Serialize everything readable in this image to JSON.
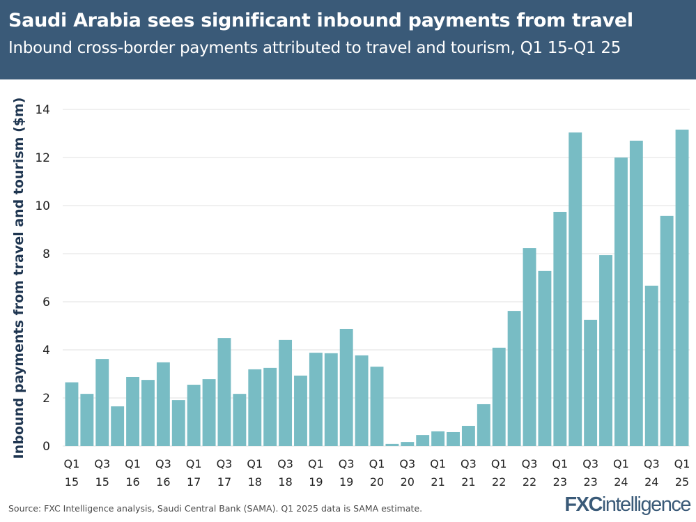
{
  "header": {
    "title": "Saudi Arabia sees significant inbound payments from travel",
    "subtitle": "Inbound cross-border payments attributed to travel and tourism, Q1 15-Q1 25"
  },
  "footer": {
    "source": "Source: FXC Intelligence analysis, Saudi Central Bank (SAMA). Q1 2025 data is SAMA estimate.",
    "logo": "FXCintelligence"
  },
  "chart_data": {
    "type": "bar",
    "title": "Saudi Arabia sees significant inbound payments from travel",
    "subtitle": "Inbound cross-border payments attributed to travel and tourism, Q1 15-Q1 25",
    "xlabel": "",
    "ylabel": "Inbound payments from travel and tourism ($m)",
    "ylim": [
      0,
      14
    ],
    "yticks": [
      0,
      2,
      4,
      6,
      8,
      10,
      12,
      14
    ],
    "grid": true,
    "bar_color": "#78bcc4",
    "categories": [
      "Q1 15",
      "Q2 15",
      "Q3 15",
      "Q4 15",
      "Q1 16",
      "Q2 16",
      "Q3 16",
      "Q4 16",
      "Q1 17",
      "Q2 17",
      "Q3 17",
      "Q4 17",
      "Q1 18",
      "Q2 18",
      "Q3 18",
      "Q4 18",
      "Q1 19",
      "Q2 19",
      "Q3 19",
      "Q4 19",
      "Q1 20",
      "Q2 20",
      "Q3 20",
      "Q4 20",
      "Q1 21",
      "Q2 21",
      "Q3 21",
      "Q4 21",
      "Q1 22",
      "Q2 22",
      "Q3 22",
      "Q4 22",
      "Q1 23",
      "Q2 23",
      "Q3 23",
      "Q4 23",
      "Q1 24",
      "Q2 24",
      "Q3 24",
      "Q4 24",
      "Q1 25"
    ],
    "values": [
      2.65,
      2.17,
      3.62,
      1.65,
      2.87,
      2.75,
      3.48,
      1.91,
      2.55,
      2.78,
      4.49,
      2.17,
      3.19,
      3.25,
      4.41,
      2.93,
      3.88,
      3.86,
      4.87,
      3.77,
      3.3,
      0.09,
      0.17,
      0.46,
      0.61,
      0.58,
      0.84,
      1.74,
      4.09,
      5.62,
      8.23,
      7.28,
      9.74,
      13.04,
      5.25,
      7.94,
      12.0,
      12.7,
      6.67,
      9.57,
      13.16
    ]
  }
}
